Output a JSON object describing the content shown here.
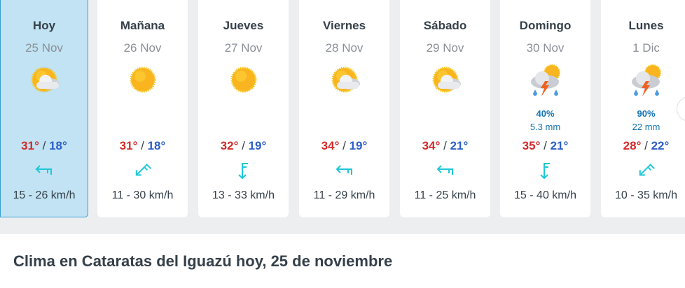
{
  "days": [
    {
      "day": "Hoy",
      "date": "25 Nov",
      "icon": "sun-cloud-icon",
      "max": "31°",
      "min": "18°",
      "wind_dir": "west",
      "speed": "15 - 26 km/h",
      "today": true
    },
    {
      "day": "Mañana",
      "date": "26 Nov",
      "icon": "sun-icon",
      "max": "31°",
      "min": "18°",
      "wind_dir": "southwest",
      "speed": "11 - 30 km/h"
    },
    {
      "day": "Jueves",
      "date": "27 Nov",
      "icon": "sun-icon",
      "max": "32°",
      "min": "19°",
      "wind_dir": "south",
      "speed": "13 - 33 km/h"
    },
    {
      "day": "Viernes",
      "date": "28 Nov",
      "icon": "sun-cloud-icon",
      "max": "34°",
      "min": "19°",
      "wind_dir": "west",
      "speed": "11 - 29 km/h"
    },
    {
      "day": "Sábado",
      "date": "29 Nov",
      "icon": "sun-cloud-icon",
      "max": "34°",
      "min": "21°",
      "wind_dir": "west",
      "speed": "11 - 25 km/h"
    },
    {
      "day": "Domingo",
      "date": "30 Nov",
      "icon": "thunderstorm-icon",
      "rain_pct": "40%",
      "rain_mm": "5.3 mm",
      "max": "35°",
      "min": "21°",
      "wind_dir": "south",
      "speed": "15 - 40 km/h"
    },
    {
      "day": "Lunes",
      "date": "1 Dic",
      "icon": "thunderstorm-icon",
      "rain_pct": "90%",
      "rain_mm": "22 mm",
      "max": "28°",
      "min": "22°",
      "wind_dir": "southwest",
      "speed": "10 - 35 km/h"
    }
  ],
  "sep": "/",
  "heading": "Clima en Cataratas del Iguazú hoy, 25 de noviembre",
  "colors": {
    "max": "#d42a2a",
    "min": "#2b5ec9",
    "wind": "#1ec8d8",
    "rain": "#1676b3",
    "today_bg": "#c2e3f3"
  }
}
